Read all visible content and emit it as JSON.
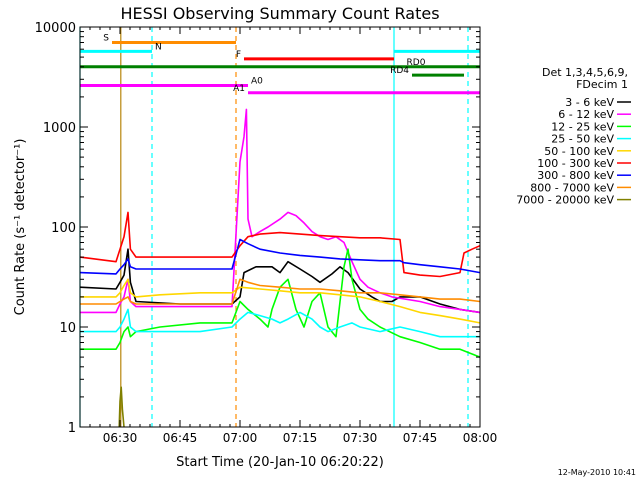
{
  "chart_data": {
    "type": "line",
    "title": "HESSI Observing Summary Count Rates",
    "xlabel": "Start Time (20-Jan-10 06:20:22)",
    "ylabel": "Count Rate (s⁻¹ detector⁻¹)",
    "y_scale": "log",
    "ylim": [
      1,
      10000
    ],
    "xlim_minutes_after_0620": [
      0,
      100
    ],
    "x_ticks": [
      {
        "label": "06:30",
        "min": 10
      },
      {
        "label": "06:45",
        "min": 25
      },
      {
        "label": "07:00",
        "min": 40
      },
      {
        "label": "07:15",
        "min": 55
      },
      {
        "label": "07:30",
        "min": 70
      },
      {
        "label": "07:45",
        "min": 85
      },
      {
        "label": "08:00",
        "min": 100
      }
    ],
    "y_ticks": [
      {
        "label": "1",
        "v": 1
      },
      {
        "label": "10",
        "v": 10
      },
      {
        "label": "100",
        "v": 100
      },
      {
        "label": "1000",
        "v": 1000
      },
      {
        "label": "10000",
        "v": 10000
      }
    ],
    "legend": {
      "position": "right",
      "header": [
        "Det 1,3,4,5,6,9,",
        "FDecim 1"
      ]
    },
    "series": [
      {
        "name": "3 - 6 keV",
        "color": "#000000",
        "points": [
          [
            0,
            25
          ],
          [
            9,
            24
          ],
          [
            10,
            28
          ],
          [
            11,
            33
          ],
          [
            12,
            60
          ],
          [
            12.6,
            28
          ],
          [
            14,
            18
          ],
          [
            25,
            17
          ],
          [
            38,
            17
          ],
          [
            40,
            20
          ],
          [
            41,
            35
          ],
          [
            44,
            40
          ],
          [
            48,
            40
          ],
          [
            50,
            35
          ],
          [
            52,
            45
          ],
          [
            55,
            38
          ],
          [
            58,
            32
          ],
          [
            60,
            28
          ],
          [
            63,
            34
          ],
          [
            65,
            40
          ],
          [
            67,
            35
          ],
          [
            70,
            24
          ],
          [
            73,
            20
          ],
          [
            75,
            18
          ],
          [
            78,
            18
          ],
          [
            80,
            20
          ],
          [
            85,
            20
          ],
          [
            90,
            17
          ],
          [
            95,
            15
          ],
          [
            100,
            14
          ]
        ]
      },
      {
        "name": "6 - 12 keV",
        "color": "#ff00ff",
        "points": [
          [
            0,
            14
          ],
          [
            9,
            14
          ],
          [
            10,
            17
          ],
          [
            11,
            20
          ],
          [
            12,
            30
          ],
          [
            12.6,
            18
          ],
          [
            14,
            16
          ],
          [
            38,
            16
          ],
          [
            40,
            450
          ],
          [
            41,
            800
          ],
          [
            41.6,
            1500
          ],
          [
            42,
            120
          ],
          [
            43,
            80
          ],
          [
            45,
            90
          ],
          [
            47,
            100
          ],
          [
            50,
            120
          ],
          [
            52,
            140
          ],
          [
            54,
            130
          ],
          [
            56,
            110
          ],
          [
            58,
            90
          ],
          [
            60,
            80
          ],
          [
            62,
            75
          ],
          [
            64,
            80
          ],
          [
            66,
            70
          ],
          [
            68,
            45
          ],
          [
            70,
            30
          ],
          [
            72,
            25
          ],
          [
            75,
            22
          ],
          [
            78,
            20
          ],
          [
            85,
            18
          ],
          [
            90,
            16
          ],
          [
            95,
            15
          ],
          [
            100,
            14
          ]
        ]
      },
      {
        "name": "12 - 25 keV",
        "color": "#00ff00",
        "points": [
          [
            0,
            6
          ],
          [
            5,
            6
          ],
          [
            9,
            6
          ],
          [
            10,
            7
          ],
          [
            11,
            9
          ],
          [
            12,
            10
          ],
          [
            12.6,
            8
          ],
          [
            14,
            9
          ],
          [
            20,
            10
          ],
          [
            30,
            11
          ],
          [
            38,
            11
          ],
          [
            40,
            18
          ],
          [
            42,
            15
          ],
          [
            45,
            12
          ],
          [
            47,
            10
          ],
          [
            48,
            15
          ],
          [
            50,
            25
          ],
          [
            52,
            30
          ],
          [
            54,
            15
          ],
          [
            56,
            10
          ],
          [
            58,
            18
          ],
          [
            60,
            22
          ],
          [
            62,
            10
          ],
          [
            64,
            8
          ],
          [
            66,
            40
          ],
          [
            67,
            60
          ],
          [
            68,
            30
          ],
          [
            70,
            15
          ],
          [
            72,
            12
          ],
          [
            75,
            10
          ],
          [
            80,
            8
          ],
          [
            85,
            7
          ],
          [
            90,
            6
          ],
          [
            95,
            6
          ],
          [
            100,
            5
          ]
        ]
      },
      {
        "name": "25 - 50 keV",
        "color": "#00ffff",
        "points": [
          [
            0,
            9
          ],
          [
            9,
            9
          ],
          [
            10,
            10
          ],
          [
            11,
            12
          ],
          [
            12,
            15
          ],
          [
            12.6,
            10
          ],
          [
            14,
            9
          ],
          [
            20,
            9
          ],
          [
            30,
            9
          ],
          [
            38,
            10
          ],
          [
            40,
            12
          ],
          [
            42,
            14
          ],
          [
            45,
            13
          ],
          [
            48,
            12
          ],
          [
            50,
            11
          ],
          [
            52,
            12
          ],
          [
            55,
            14
          ],
          [
            58,
            12
          ],
          [
            60,
            10
          ],
          [
            62,
            9
          ],
          [
            65,
            10
          ],
          [
            68,
            11
          ],
          [
            70,
            10
          ],
          [
            75,
            9
          ],
          [
            80,
            10
          ],
          [
            85,
            9
          ],
          [
            90,
            8
          ],
          [
            95,
            8
          ],
          [
            100,
            8
          ]
        ]
      },
      {
        "name": "50 - 100 keV",
        "color": "#ffd700",
        "points": [
          [
            0,
            20
          ],
          [
            9,
            20
          ],
          [
            10,
            22
          ],
          [
            11,
            26
          ],
          [
            12,
            30
          ],
          [
            12.6,
            22
          ],
          [
            14,
            20
          ],
          [
            20,
            21
          ],
          [
            30,
            22
          ],
          [
            38,
            22
          ],
          [
            40,
            25
          ],
          [
            45,
            24
          ],
          [
            50,
            23
          ],
          [
            55,
            22
          ],
          [
            60,
            22
          ],
          [
            65,
            21
          ],
          [
            70,
            20
          ],
          [
            75,
            18
          ],
          [
            80,
            16
          ],
          [
            85,
            14
          ],
          [
            90,
            13
          ],
          [
            95,
            12
          ],
          [
            100,
            11
          ]
        ]
      },
      {
        "name": "100 - 300 keV",
        "color": "#ff0000",
        "points": [
          [
            0,
            50
          ],
          [
            9,
            45
          ],
          [
            10,
            60
          ],
          [
            11,
            80
          ],
          [
            12,
            140
          ],
          [
            12.6,
            60
          ],
          [
            14,
            50
          ],
          [
            38,
            50
          ],
          [
            40,
            65
          ],
          [
            42,
            80
          ],
          [
            45,
            85
          ],
          [
            50,
            88
          ],
          [
            55,
            85
          ],
          [
            60,
            82
          ],
          [
            65,
            80
          ],
          [
            70,
            78
          ],
          [
            75,
            78
          ],
          [
            80,
            75
          ],
          [
            81,
            35
          ],
          [
            85,
            33
          ],
          [
            90,
            32
          ],
          [
            95,
            35
          ],
          [
            96,
            55
          ],
          [
            98,
            60
          ],
          [
            100,
            65
          ]
        ]
      },
      {
        "name": "300 - 800 keV",
        "color": "#0000ff",
        "points": [
          [
            0,
            35
          ],
          [
            9,
            34
          ],
          [
            10,
            38
          ],
          [
            11,
            42
          ],
          [
            12,
            48
          ],
          [
            12.6,
            40
          ],
          [
            14,
            38
          ],
          [
            38,
            38
          ],
          [
            40,
            75
          ],
          [
            42,
            68
          ],
          [
            45,
            60
          ],
          [
            50,
            55
          ],
          [
            55,
            52
          ],
          [
            60,
            50
          ],
          [
            65,
            48
          ],
          [
            70,
            47
          ],
          [
            75,
            46
          ],
          [
            80,
            46
          ],
          [
            81,
            44
          ],
          [
            85,
            42
          ],
          [
            90,
            40
          ],
          [
            95,
            38
          ],
          [
            100,
            35
          ]
        ]
      },
      {
        "name": "800 - 7000 keV",
        "color": "#ff8c00",
        "points": [
          [
            0,
            17
          ],
          [
            9,
            17
          ],
          [
            10,
            18
          ],
          [
            11,
            19
          ],
          [
            12,
            20
          ],
          [
            12.6,
            18
          ],
          [
            14,
            17
          ],
          [
            38,
            17
          ],
          [
            40,
            30
          ],
          [
            42,
            28
          ],
          [
            45,
            26
          ],
          [
            50,
            25
          ],
          [
            55,
            24
          ],
          [
            60,
            24
          ],
          [
            65,
            23
          ],
          [
            70,
            22
          ],
          [
            75,
            22
          ],
          [
            80,
            21
          ],
          [
            85,
            20
          ],
          [
            90,
            19
          ],
          [
            95,
            19
          ],
          [
            100,
            18
          ]
        ]
      },
      {
        "name": "7000 - 20000 keV",
        "color": "#808000",
        "points": [
          [
            9.8,
            1
          ],
          [
            10,
            1.8
          ],
          [
            10.3,
            2.5
          ],
          [
            10.6,
            1.5
          ],
          [
            11,
            1
          ]
        ]
      }
    ],
    "vertical_markers": [
      {
        "min": 0,
        "color": "#00ffff",
        "style": "solid"
      },
      {
        "min": 10.2,
        "color": "#b8860b",
        "style": "solid"
      },
      {
        "min": 18,
        "color": "#00ffff",
        "style": "dashed"
      },
      {
        "min": 39,
        "color": "#ff8c00",
        "style": "dashed"
      },
      {
        "min": 78.5,
        "color": "#00ffff",
        "style": "solid"
      },
      {
        "min": 97,
        "color": "#00ffff",
        "style": "dashed"
      }
    ],
    "flag_bars": [
      {
        "label": "S",
        "color": "#ff8c00",
        "x1": 8,
        "x2": 39,
        "v": 7000,
        "label_side": "left"
      },
      {
        "label": "N",
        "color": "#00ffff",
        "x1": 0,
        "x2": 18,
        "v": 5700,
        "label_side": "right"
      },
      {
        "label": "N",
        "color": "#00ffff",
        "x1": 78.5,
        "x2": 100,
        "v": 5700,
        "label_side": "none"
      },
      {
        "label": "F",
        "color": "#ff0000",
        "x1": 41,
        "x2": 78.5,
        "v": 4800,
        "label_side": "left"
      },
      {
        "label": "RD0",
        "color": "#008000",
        "x1": 0,
        "x2": 100,
        "v": 4000,
        "label_side": "right_mid"
      },
      {
        "label": "RD4",
        "color": "#008000",
        "x1": 83,
        "x2": 96,
        "v": 3300,
        "label_side": "left"
      },
      {
        "label": "A0",
        "color": "#ff00ff",
        "x1": 0,
        "x2": 42,
        "v": 2600,
        "label_side": "right"
      },
      {
        "label": "A1",
        "color": "#ff00ff",
        "x1": 42,
        "x2": 100,
        "v": 2200,
        "label_side": "left"
      }
    ],
    "grid": false
  },
  "footer": {
    "date_stamp": "12-May-2010 10:41"
  }
}
